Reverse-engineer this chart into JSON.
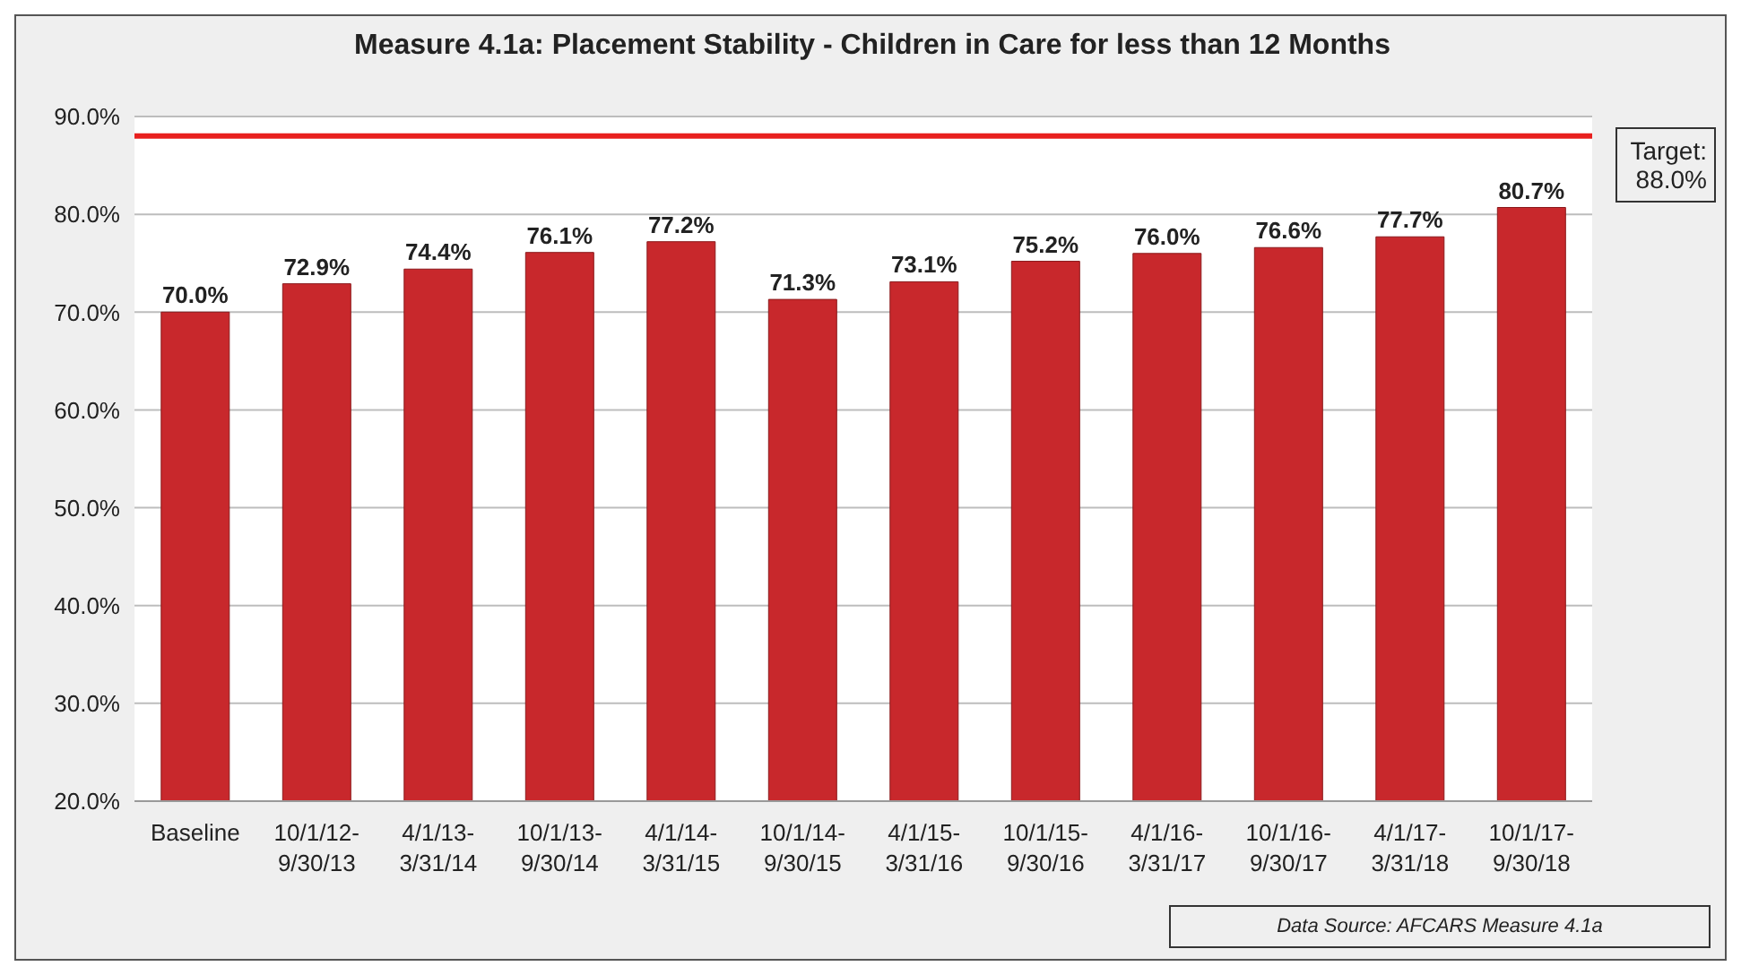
{
  "chart_data": {
    "type": "bar",
    "title": "Measure 4.1a: Placement Stability - Children in Care for less than 12 Months",
    "categories": [
      "Baseline",
      "10/1/12-9/30/13",
      "4/1/13-3/31/14",
      "10/1/13-9/30/14",
      "4/1/14-3/31/15",
      "10/1/14-9/30/15",
      "4/1/15-3/31/16",
      "10/1/15-9/30/16",
      "4/1/16-3/31/17",
      "10/1/16-9/30/17",
      "4/1/17-3/31/18",
      "10/1/17-9/30/18"
    ],
    "values": [
      70.0,
      72.9,
      74.4,
      76.1,
      77.2,
      71.3,
      73.1,
      75.2,
      76.0,
      76.6,
      77.7,
      80.7
    ],
    "value_labels": [
      "70.0%",
      "72.9%",
      "74.4%",
      "76.1%",
      "77.2%",
      "71.3%",
      "73.1%",
      "75.2%",
      "76.0%",
      "76.6%",
      "77.7%",
      "80.7%"
    ],
    "color": "#c8282c",
    "ylim": [
      20,
      90
    ],
    "yticks": [
      {
        "value": 20,
        "label": "20.0%"
      },
      {
        "value": 30,
        "label": "30.0%"
      },
      {
        "value": 40,
        "label": "40.0%"
      },
      {
        "value": 50,
        "label": "50.0%"
      },
      {
        "value": 60,
        "label": "60.0%"
      },
      {
        "value": 70,
        "label": "70.0%"
      },
      {
        "value": 80,
        "label": "80.0%"
      },
      {
        "value": 90,
        "label": "90.0%"
      }
    ],
    "grid": "y",
    "legend": false,
    "ref_lines": [
      {
        "axis": "y",
        "value": 88,
        "label": "Target: 88.0%",
        "color": "#e8201e"
      }
    ],
    "annotations": [
      "Data Source: AFCARS Measure 4.1a"
    ]
  }
}
